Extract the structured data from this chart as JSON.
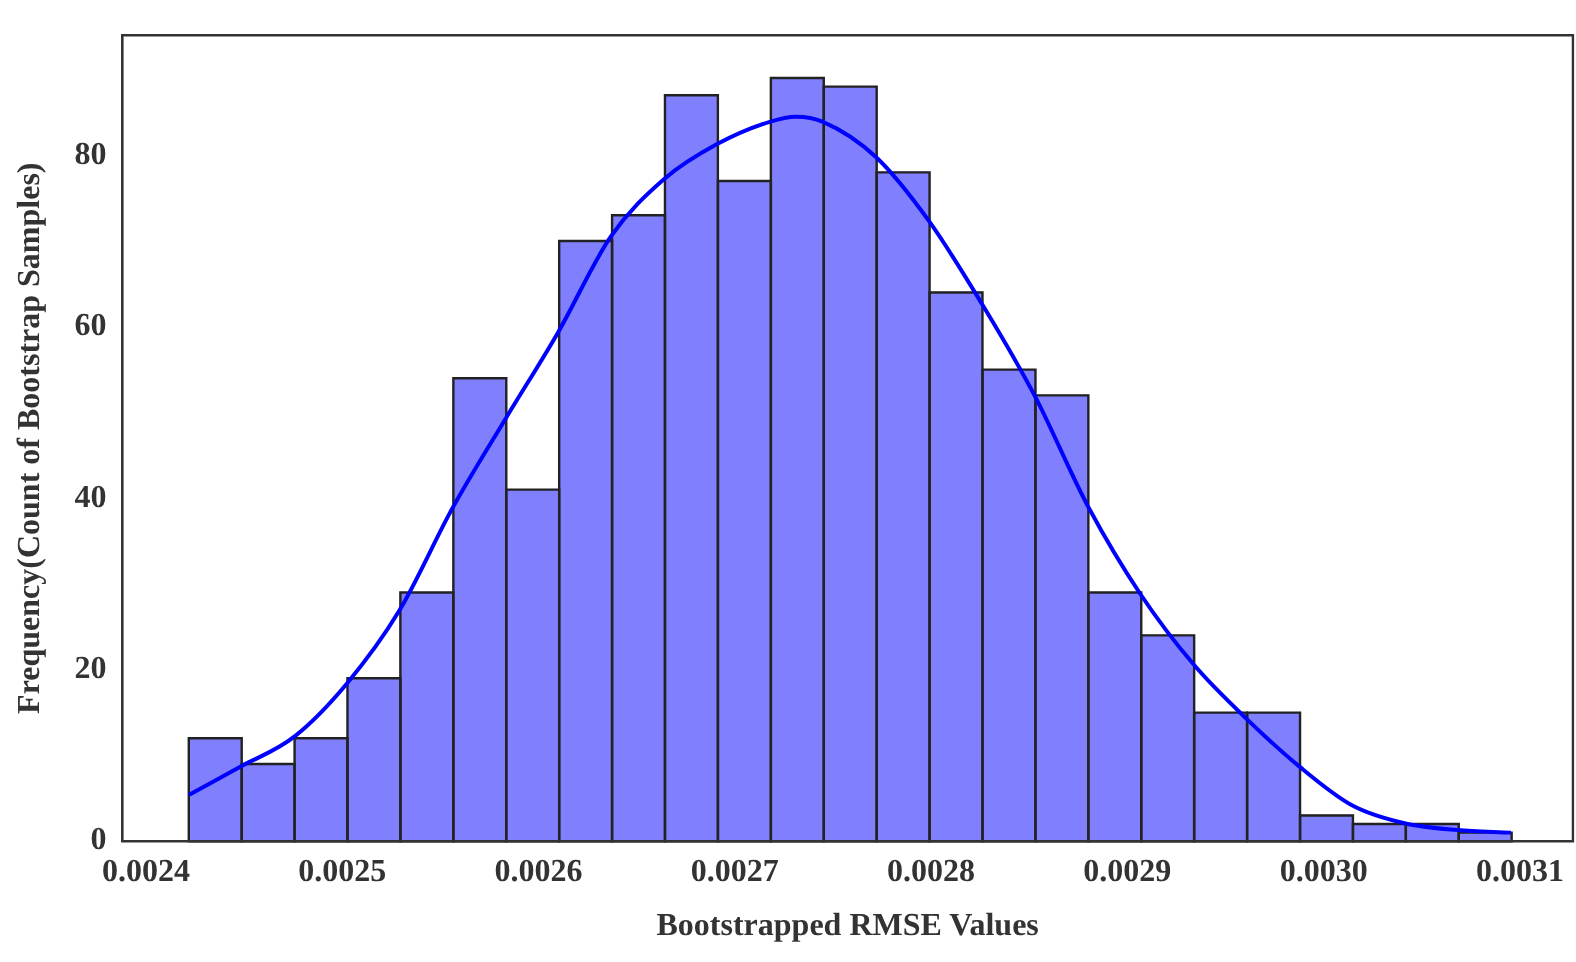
{
  "chart_data": {
    "type": "histogram",
    "xlabel": "Bootstrapped RMSE Values",
    "ylabel": "Frequency(Count of Bootstrap Samples)",
    "xlim": [
      0.002388,
      0.003127
    ],
    "xticks": [
      0.0024,
      0.0025,
      0.0026,
      0.0027,
      0.0028,
      0.0029,
      {
        "value": 0.003,
        "label": "0.0030"
      },
      0.0031
    ],
    "ylim": [
      0,
      94
    ],
    "yticks": [
      0,
      20,
      40,
      60,
      80
    ],
    "grid": false,
    "legend": false,
    "series": [
      {
        "type": "histogram",
        "color": "#8080ff",
        "bins": [
          0.0024218,
          0.0024488,
          0.0024757,
          0.0025027,
          0.0025296,
          0.0025566,
          0.0025836,
          0.0026105,
          0.0026375,
          0.0026644,
          0.0026914,
          0.0027184,
          0.0027453,
          0.0027723,
          0.0027992,
          0.0028262,
          0.0028532,
          0.0028801,
          0.0029071,
          0.002934,
          0.002961,
          0.002988,
          0.0030149,
          0.0030419,
          0.0030688,
          0.0030958
        ],
        "values": [
          12,
          9,
          12,
          19,
          29,
          54,
          41,
          70,
          73,
          87,
          77,
          89,
          88,
          78,
          64,
          55,
          52,
          29,
          24,
          15,
          15,
          3,
          2,
          2,
          1
        ]
      },
      {
        "type": "line",
        "color": "#0000ff",
        "x": [
          0.0024218,
          0.0024483,
          0.0024756,
          0.0025024,
          0.0025291,
          0.0025563,
          0.0025833,
          0.0026101,
          0.0026368,
          0.0026639,
          0.002691,
          0.0027178,
          0.0027312,
          0.0027449,
          0.0027719,
          0.0027987,
          0.0028258,
          0.0028529,
          0.0028796,
          0.0029067,
          0.0029338,
          0.0029606,
          0.0029877,
          0.0030144,
          0.0030412,
          0.0030682,
          0.0030954
        ],
        "values": [
          5.4,
          8.7,
          12.2,
          18.4,
          26.9,
          38.9,
          49.3,
          59.4,
          70.5,
          77.2,
          81.3,
          83.9,
          84.5,
          83.9,
          79.8,
          72.4,
          62.7,
          51.9,
          39.2,
          28.8,
          20.6,
          14.3,
          8.7,
          4.2,
          2.1,
          1.3,
          1.0
        ]
      }
    ]
  }
}
